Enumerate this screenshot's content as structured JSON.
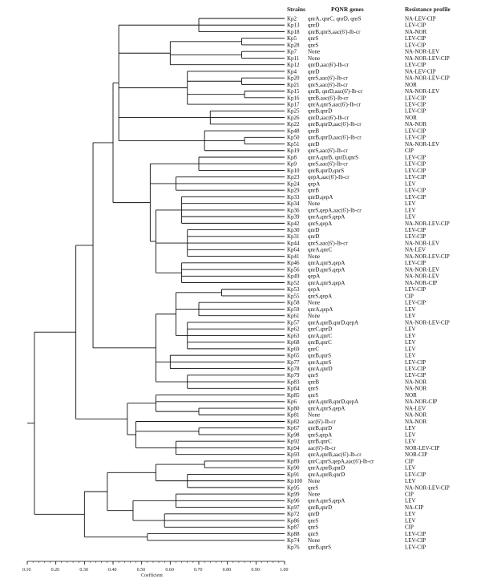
{
  "headers": {
    "strains": "Strains",
    "genes": "PQNR genes",
    "profile": "Resistance profile"
  },
  "axis": {
    "title": "Coefficient",
    "ticks": [
      "0.10",
      "0.20",
      "0.30",
      "0.40",
      "0.50",
      "0.60",
      "0.70",
      "0.80",
      "0.90",
      "1.00"
    ],
    "range": [
      0.1,
      1.0
    ]
  },
  "rows": [
    {
      "strain": "Kp2",
      "genes": "qnrA, qnrC, qnrD, qnrS",
      "profile": "NA-LEV-CIP"
    },
    {
      "strain": "Kp13",
      "genes": "qnrD",
      "profile": "LEV-CIP"
    },
    {
      "strain": "Kp18",
      "genes": "qnrB,qnrS,aac(6')-Ib-cr",
      "profile": "NA-NOR"
    },
    {
      "strain": "Kp5",
      "genes": "qnrS",
      "profile": "LEV-CIP"
    },
    {
      "strain": "Kp28",
      "genes": "qnrS",
      "profile": "LEV-CIP"
    },
    {
      "strain": "Kp7",
      "genes": "None",
      "profile": "NA-NOR-LEV"
    },
    {
      "strain": "Kp11",
      "genes": "None",
      "profile": "NA-NOR-LEV-CIP"
    },
    {
      "strain": "Kp12",
      "genes": "qnrD,aac(6')-Ib-cr",
      "profile": "LEV-CIP"
    },
    {
      "strain": "Kp4",
      "genes": "qnrD",
      "profile": "NA-LEV-CIP"
    },
    {
      "strain": "Kp20",
      "genes": "qnrS,aac(6')-Ib-cr",
      "profile": "NA-NOR-LEV-CIP"
    },
    {
      "strain": "Kp21",
      "genes": "qnrS,aac(6')-Ib-cr",
      "profile": "NOR"
    },
    {
      "strain": "Kp15",
      "genes": "qnrB, qnrD,aac(6')-Ib-cr",
      "profile": "NA-NOR-LEV"
    },
    {
      "strain": "Kp16",
      "genes": "qnrB,aac(6')-Ib-cr",
      "profile": "LEV-CIP"
    },
    {
      "strain": "Kp17",
      "genes": "qnrA,qnrS,aac(6')-Ib-cr",
      "profile": "LEV-CIP"
    },
    {
      "strain": "Kp25",
      "genes": "qnrB,qnrD",
      "profile": "LEV-CIP"
    },
    {
      "strain": "Kp26",
      "genes": "qnrD,aac(6')-Ib-cr",
      "profile": "NOR"
    },
    {
      "strain": "Kp22",
      "genes": "qnrB,qnrD,aac(6')-Ib-cr",
      "profile": "NA-NOR"
    },
    {
      "strain": "Kp48",
      "genes": "qnrB",
      "profile": "LEV-CIP"
    },
    {
      "strain": "Kp50",
      "genes": "qnrB,qnrD,aac(6')-Ib-cr",
      "profile": "LEV-CIP"
    },
    {
      "strain": "Kp51",
      "genes": "qnrD",
      "profile": "NA-NOR-LEV"
    },
    {
      "strain": "Kp19",
      "genes": "qnrS,aac(6')-Ib-cr",
      "profile": "CIP"
    },
    {
      "strain": "Kp8",
      "genes": "qnrA,qnrB, qnrD,qnrS",
      "profile": "LEV-CIP"
    },
    {
      "strain": "Kp9",
      "genes": "qnrS,aac(6')-Ib-cr",
      "profile": "LEV-CIP"
    },
    {
      "strain": "Kp10",
      "genes": "qnrB,qnrD,qnrS",
      "profile": "LEV-CIP"
    },
    {
      "strain": "Kp23",
      "genes": "qepA,aac(6')-Ib-cr",
      "profile": "LEV-CIP"
    },
    {
      "strain": "Kp24",
      "genes": "qepA",
      "profile": "LEV"
    },
    {
      "strain": "Kp29",
      "genes": "qnrB",
      "profile": "LEV-CIP"
    },
    {
      "strain": "Kp33",
      "genes": "qnrD,qepA",
      "profile": "LEV-CIP"
    },
    {
      "strain": "Kp34",
      "genes": "None",
      "profile": "LEV"
    },
    {
      "strain": "Kp36",
      "genes": "qnrS,qepA,aac(6')-Ib-cr",
      "profile": "LEV"
    },
    {
      "strain": "Kp39",
      "genes": "qnrA,qnrS,qepA",
      "profile": "LEV"
    },
    {
      "strain": "Kp42",
      "genes": "qnrS,qepA",
      "profile": "NA-NOR-LEV-CIP"
    },
    {
      "strain": "Kp30",
      "genes": "qnrD",
      "profile": "LEV-CIP"
    },
    {
      "strain": "Kp31",
      "genes": "qnrD",
      "profile": "LEV-CIP"
    },
    {
      "strain": "Kp44",
      "genes": "qnrS,aac(6')-Ib-cr",
      "profile": "NA-NOR-LEV"
    },
    {
      "strain": "Kp64",
      "genes": "qnrA,qnrC",
      "profile": "NA-LEV"
    },
    {
      "strain": "Kp41",
      "genes": "None",
      "profile": "NA-NOR-LEV-CIP"
    },
    {
      "strain": "Kp46",
      "genes": "qnrA,qnrS,qepA",
      "profile": "LEV-CIP"
    },
    {
      "strain": "Kp56",
      "genes": "qnrD,qnrS,qepA",
      "profile": "NA-NOR-LEV"
    },
    {
      "strain": "Kp49",
      "genes": "qepA",
      "profile": "NA-NOR-LEV"
    },
    {
      "strain": "Kp52",
      "genes": "qnrA,qnrS,qepA",
      "profile": "NA-NOR-CIP"
    },
    {
      "strain": "Kp53",
      "genes": "qepA",
      "profile": "LEV-CIP"
    },
    {
      "strain": "Kp55",
      "genes": "qnrS,qepA",
      "profile": "CIP"
    },
    {
      "strain": "Kp58",
      "genes": "None",
      "profile": "LEV-CIP"
    },
    {
      "strain": "Kp59",
      "genes": "qnrA,qepA",
      "profile": "LEV"
    },
    {
      "strain": "Kp61",
      "genes": "None",
      "profile": "LEV"
    },
    {
      "strain": "Kp57",
      "genes": "qnrA,qnrB,qnrD,qepA",
      "profile": "NA-NOR-LEV-CIP"
    },
    {
      "strain": "Kp62",
      "genes": "qnrC,qnrD",
      "profile": "LEV"
    },
    {
      "strain": "Kp63",
      "genes": "qnrA,qnrC",
      "profile": "LEV"
    },
    {
      "strain": "Kp68",
      "genes": "qnrB,qnrC",
      "profile": "LEV"
    },
    {
      "strain": "Kp69",
      "genes": "qnrC",
      "profile": "LEV"
    },
    {
      "strain": "Kp65",
      "genes": "qnrB,qnrS",
      "profile": "LEV"
    },
    {
      "strain": "Kp77",
      "genes": "qnrA,qnrS",
      "profile": "LEV-CIP"
    },
    {
      "strain": "Kp78",
      "genes": "qnrA,qnrD",
      "profile": "LEV-CIP"
    },
    {
      "strain": "Kp79",
      "genes": "qnrS",
      "profile": "LEV-CIP"
    },
    {
      "strain": "Kp83",
      "genes": "qnrB",
      "profile": "NA-NOR"
    },
    {
      "strain": "Kp84",
      "genes": "qnrS",
      "profile": "NA-NOR"
    },
    {
      "strain": "Kp85",
      "genes": "qnrS",
      "profile": "NOR"
    },
    {
      "strain": "Kp6",
      "genes": "qnrA,qnrB,qnrD,qepA",
      "profile": "NA-NOR-CIP"
    },
    {
      "strain": "Kp80",
      "genes": "qnrA,qnrS,qepA",
      "profile": "NA-LEV"
    },
    {
      "strain": "Kp81",
      "genes": "None",
      "profile": "NA-NOR"
    },
    {
      "strain": "Kp82",
      "genes": "aac(6')-Ib-cr",
      "profile": "NA-NOR"
    },
    {
      "strain": "Kp67",
      "genes": "qnrB,qnrD",
      "profile": "LEV"
    },
    {
      "strain": "Kp98",
      "genes": "qnrS,qepA",
      "profile": "LEV"
    },
    {
      "strain": "Kp92",
      "genes": "qnrB,qnrC",
      "profile": "LEV"
    },
    {
      "strain": "Kp94",
      "genes": "aac(6')-Ib-cr",
      "profile": "NOR-LEV-CIP"
    },
    {
      "strain": "Kp93",
      "genes": "qnrA,qnrB,aac(6')-Ib-cr",
      "profile": "NOR-CIP"
    },
    {
      "strain": "Kp89",
      "genes": "qnrC,qnrS,qepA,aac(6')-Ib-cr",
      "profile": "CIP"
    },
    {
      "strain": "Kp90",
      "genes": "qnrA,qnrB,qnrD",
      "profile": "LEV"
    },
    {
      "strain": "Kp91",
      "genes": "qnrA,qnrB,qnrD",
      "profile": "LEV-CIP"
    },
    {
      "strain": "Kp100",
      "genes": "None",
      "profile": "LEV"
    },
    {
      "strain": "Kp95",
      "genes": "qnrS",
      "profile": "NA-NOR-LEV-CIP"
    },
    {
      "strain": "Kp99",
      "genes": "None",
      "profile": "CIP"
    },
    {
      "strain": "Kp96",
      "genes": "qnrA,qnrS,qepA",
      "profile": "LEV"
    },
    {
      "strain": "Kp97",
      "genes": "qnrB,qnrD",
      "profile": "NA-CIP"
    },
    {
      "strain": "Kp72",
      "genes": "qnrD",
      "profile": "LEV"
    },
    {
      "strain": "Kp86",
      "genes": "qnrS",
      "profile": "LEV"
    },
    {
      "strain": "Kp87",
      "genes": "qnrS",
      "profile": "CIP"
    },
    {
      "strain": "Kp88",
      "genes": "qnrS",
      "profile": "LEV-CIP"
    },
    {
      "strain": "Kp74",
      "genes": "None",
      "profile": "LEV-CIP"
    },
    {
      "strain": "Kp76",
      "genes": "qnrB,qnrS",
      "profile": "LEV-CIP"
    }
  ]
}
